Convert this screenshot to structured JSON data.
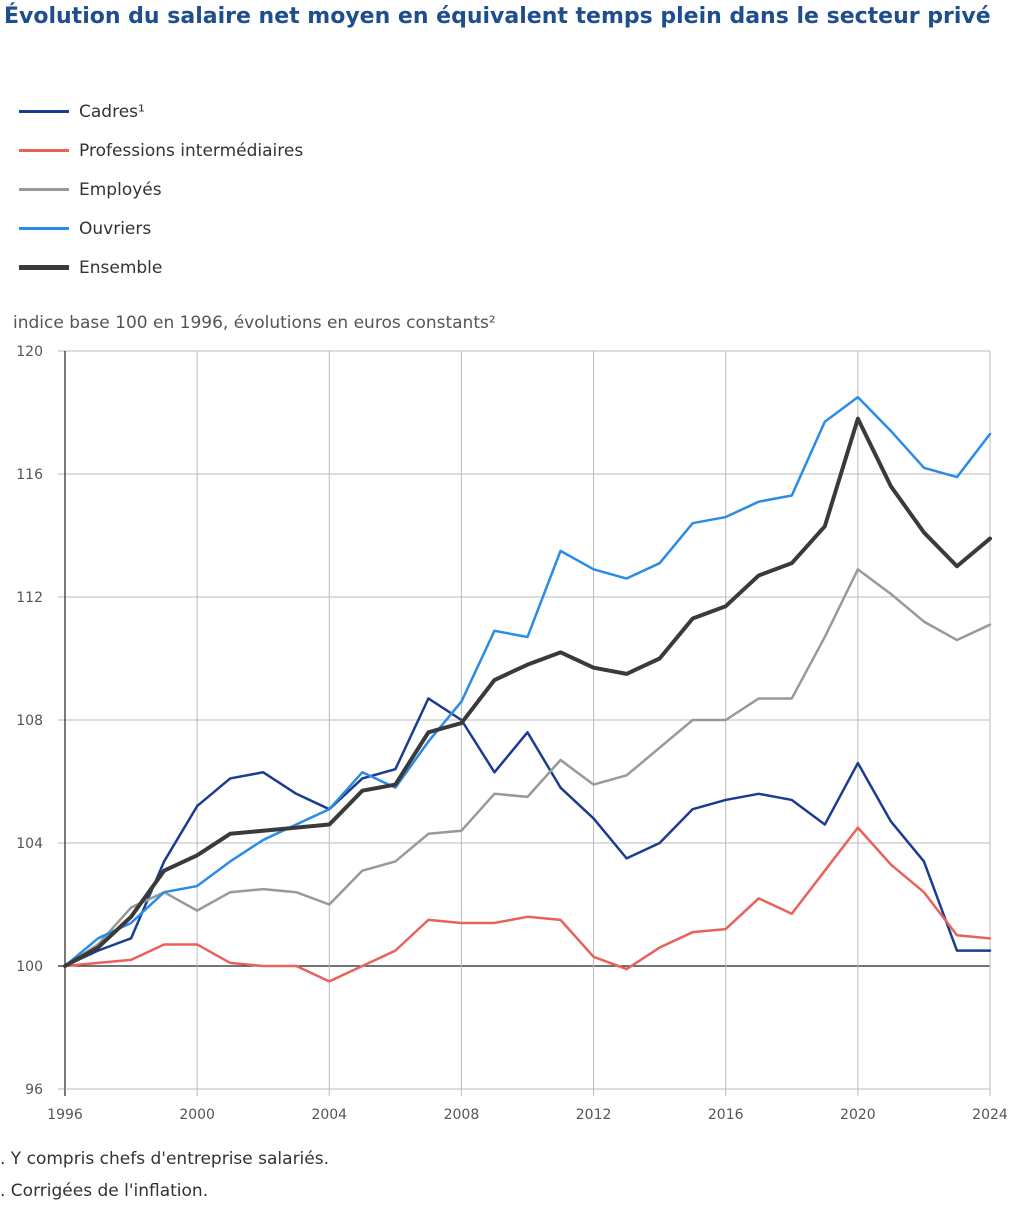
{
  "title": "Évolution du salaire net moyen en équivalent temps plein dans le secteur privé",
  "unit_label": "indice base 100 en 1996, évolutions en euros constants²",
  "footnotes": [
    ". Y compris chefs d'entreprise salariés.",
    ". Corrigées de l'inflation."
  ],
  "colors": {
    "cadres": "#1a3d8f",
    "professions_intermediaires": "#e8625a",
    "employes": "#999999",
    "ouvriers": "#2b8ce6",
    "ensemble": "#3a3a3a",
    "grid": "#bbbbbb",
    "axis": "#222222"
  },
  "chart_data": {
    "type": "line",
    "title": "Évolution du salaire net moyen en équivalent temps plein dans le secteur privé",
    "ylabel": "indice base 100 en 1996, évolutions en euros constants²",
    "xlabel": "",
    "x": [
      1996,
      1997,
      1998,
      1999,
      2000,
      2001,
      2002,
      2003,
      2004,
      2005,
      2006,
      2007,
      2008,
      2009,
      2010,
      2011,
      2012,
      2013,
      2014,
      2015,
      2016,
      2017,
      2018,
      2019,
      2020,
      2021,
      2022,
      2023,
      2024
    ],
    "xlim": [
      1996,
      2024
    ],
    "ylim": [
      96,
      120
    ],
    "x_ticks": [
      1996,
      2000,
      2004,
      2008,
      2012,
      2016,
      2020,
      2024
    ],
    "y_ticks": [
      96,
      100,
      104,
      108,
      112,
      116,
      120
    ],
    "grid": true,
    "legend_position": "top-left",
    "series": [
      {
        "name": "Cadres¹",
        "color_key": "cadres",
        "width": 2.5,
        "values": [
          100,
          100.5,
          100.9,
          103.4,
          105.2,
          106.1,
          106.3,
          105.6,
          105.1,
          106.1,
          106.4,
          108.7,
          108.0,
          106.3,
          107.6,
          105.8,
          104.8,
          103.5,
          104.0,
          105.1,
          105.4,
          105.6,
          105.4,
          104.6,
          106.6,
          104.7,
          103.4,
          100.5,
          100.5
        ]
      },
      {
        "name": "Professions intermédiaires",
        "color_key": "professions_intermediaires",
        "width": 2.5,
        "values": [
          100,
          100.1,
          100.2,
          100.7,
          100.7,
          100.1,
          100.0,
          100.0,
          99.5,
          100.0,
          100.5,
          101.5,
          101.4,
          101.4,
          101.6,
          101.5,
          100.3,
          99.9,
          100.6,
          101.1,
          101.2,
          102.2,
          101.7,
          103.1,
          104.5,
          103.3,
          102.4,
          101.0,
          100.9
        ]
      },
      {
        "name": "Employés",
        "color_key": "employes",
        "width": 2.5,
        "values": [
          100,
          100.7,
          101.9,
          102.4,
          101.8,
          102.4,
          102.5,
          102.4,
          102.0,
          103.1,
          103.4,
          104.3,
          104.4,
          105.6,
          105.5,
          106.7,
          105.9,
          106.2,
          107.1,
          108.0,
          108.0,
          108.7,
          108.7,
          110.7,
          112.9,
          112.1,
          111.2,
          110.6,
          111.1
        ]
      },
      {
        "name": "Ouvriers",
        "color_key": "ouvriers",
        "width": 2.5,
        "values": [
          100,
          100.9,
          101.4,
          102.4,
          102.6,
          103.4,
          104.1,
          104.6,
          105.1,
          106.3,
          105.8,
          107.3,
          108.6,
          110.9,
          110.7,
          113.5,
          112.9,
          112.6,
          113.1,
          114.4,
          114.6,
          115.1,
          115.3,
          117.7,
          118.5,
          117.4,
          116.2,
          115.9,
          117.3
        ]
      },
      {
        "name": "Ensemble",
        "color_key": "ensemble",
        "width": 4,
        "values": [
          100,
          100.6,
          101.6,
          103.1,
          103.6,
          104.3,
          104.4,
          104.5,
          104.6,
          105.7,
          105.9,
          107.6,
          107.9,
          109.3,
          109.8,
          110.2,
          109.7,
          109.5,
          110.0,
          111.3,
          111.7,
          112.7,
          113.1,
          114.3,
          117.8,
          115.6,
          114.1,
          113.0,
          113.9
        ]
      }
    ]
  }
}
